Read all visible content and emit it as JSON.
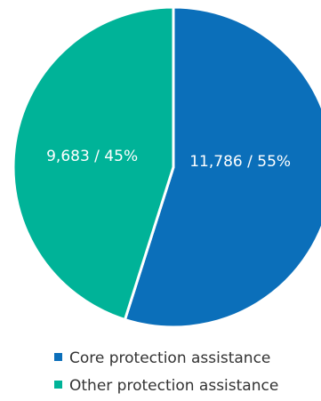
{
  "chart_data": {
    "type": "pie",
    "slices": [
      {
        "name": "Core protection assistance",
        "value": 11786,
        "percent": 55,
        "label": "11,786 / 55%",
        "color": "#0b6fba"
      },
      {
        "name": "Other protection assistance",
        "value": 9683,
        "percent": 45,
        "label": "9,683 / 45%",
        "color": "#00b398"
      }
    ],
    "legend_position": "bottom-left"
  }
}
